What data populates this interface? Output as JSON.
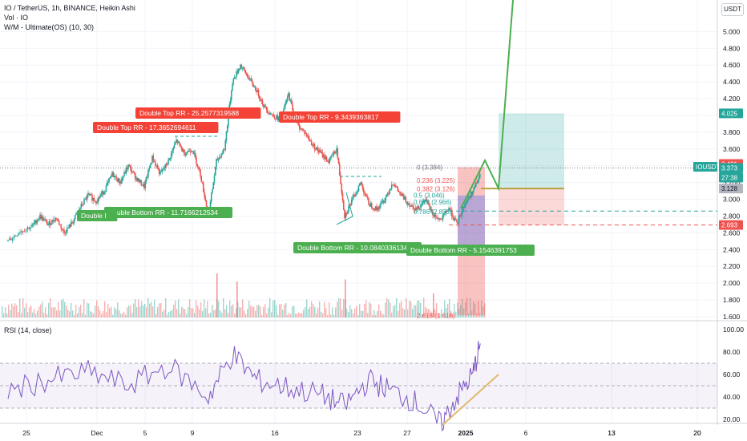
{
  "header": {
    "symbol_line": "IO / TetherUS, 1h, BINANCE, Heikin Ashi",
    "vol_line": "Vol · IO",
    "indicator_line": "W/M - Ultimate(OS) (10, 30)",
    "currency_button": "USDT"
  },
  "rsi_panel": {
    "title": "RSI (14, close)"
  },
  "colors": {
    "up": "#26a69a",
    "down": "#ef5350",
    "rsi": "#7e57c2",
    "trend": "#e2b96c",
    "green_label": "#4caf50",
    "red_label": "#f44336"
  },
  "chart_data": {
    "type": "candlestick",
    "x_ticks": [
      "25",
      "Dec",
      "5",
      "9",
      "13",
      "16",
      "20",
      "23",
      "27",
      "2025",
      "6",
      "13",
      "20"
    ],
    "y_ticks": [
      "1.600",
      "1.800",
      "2.000",
      "2.200",
      "2.400",
      "2.600",
      "2.800",
      "3.000",
      "3.200",
      "3.400",
      "3.600",
      "3.800",
      "4.000",
      "4.200",
      "4.400",
      "4.600",
      "4.800",
      "5.000"
    ],
    "rsi_ticks": [
      "100.00",
      "80.00",
      "60.00",
      "40.00",
      "20.00"
    ],
    "price_tags": [
      {
        "text": "4.025",
        "color": "#26a69a"
      },
      {
        "text": "3.421",
        "color": "#ef5350"
      },
      {
        "text": "IOUSDT",
        "color": "#26a69a"
      },
      {
        "text": "3.373",
        "color": "#26a69a"
      },
      {
        "text": "27:38",
        "color": "#26a69a"
      },
      {
        "text": "3.128",
        "color": "#b2b5be"
      },
      {
        "text": "2.693",
        "color": "#ef5350"
      }
    ],
    "pattern_labels": [
      {
        "text": "Double Top RR - 25.2577319588",
        "kind": "top"
      },
      {
        "text": "Double Top RR - 17.3652694611",
        "kind": "top"
      },
      {
        "text": "Double Top RR - 9.3439363817",
        "kind": "top"
      },
      {
        "text": "Double Bottom RR - 11.7166212534",
        "kind": "bottom"
      },
      {
        "text": "Double I",
        "kind": "bottom"
      },
      {
        "text": "Double Bottom RR - 10.0840336134",
        "kind": "bottom"
      },
      {
        "text": "Double Bottom RR - 5.1546391753",
        "kind": "bottom"
      }
    ],
    "fib_levels": [
      {
        "text": "0 (3.384)",
        "level": 3.384
      },
      {
        "text": "0.236 (3.225)",
        "level": 3.225
      },
      {
        "text": "0.382 (3.126)",
        "level": 3.126
      },
      {
        "text": "0.5 (3.046)",
        "level": 3.046
      },
      {
        "text": "0.618 (2.966)",
        "level": 2.966
      },
      {
        "text": "0.786 (2.853)",
        "level": 2.853
      },
      {
        "text": "2.618 (1.616)",
        "level": 1.616
      }
    ],
    "price_path": [
      [
        0,
        2.5
      ],
      [
        3,
        2.62
      ],
      [
        6,
        2.68
      ],
      [
        8,
        2.8
      ],
      [
        10,
        2.7
      ],
      [
        12,
        2.78
      ],
      [
        14,
        2.6
      ],
      [
        16,
        2.72
      ],
      [
        18,
        2.9
      ],
      [
        20,
        3.05
      ],
      [
        22,
        2.98
      ],
      [
        24,
        3.1
      ],
      [
        26,
        3.3
      ],
      [
        28,
        3.2
      ],
      [
        30,
        3.4
      ],
      [
        32,
        3.25
      ],
      [
        34,
        3.15
      ],
      [
        36,
        3.5
      ],
      [
        38,
        3.3
      ],
      [
        40,
        3.45
      ],
      [
        42,
        3.7
      ],
      [
        44,
        3.55
      ],
      [
        46,
        3.6
      ],
      [
        48,
        3.3
      ],
      [
        50,
        2.8
      ],
      [
        52,
        3.45
      ],
      [
        54,
        3.6
      ],
      [
        56,
        4.4
      ],
      [
        58,
        4.6
      ],
      [
        60,
        4.45
      ],
      [
        62,
        4.3
      ],
      [
        64,
        4.1
      ],
      [
        66,
        4.0
      ],
      [
        68,
        3.95
      ],
      [
        70,
        4.25
      ],
      [
        72,
        3.9
      ],
      [
        74,
        3.8
      ],
      [
        76,
        3.65
      ],
      [
        78,
        3.55
      ],
      [
        80,
        3.45
      ],
      [
        82,
        3.6
      ],
      [
        84,
        2.8
      ],
      [
        86,
        3.0
      ],
      [
        88,
        3.2
      ],
      [
        90,
        2.95
      ],
      [
        92,
        2.88
      ],
      [
        94,
        3.0
      ],
      [
        96,
        3.2
      ],
      [
        98,
        3.05
      ],
      [
        100,
        2.95
      ],
      [
        102,
        2.88
      ],
      [
        104,
        3.0
      ],
      [
        106,
        2.82
      ],
      [
        108,
        2.75
      ],
      [
        110,
        2.9
      ],
      [
        112,
        2.7
      ],
      [
        114,
        2.95
      ],
      [
        116,
        3.1
      ],
      [
        118,
        3.3
      ]
    ],
    "rsi_path": [
      [
        0,
        45
      ],
      [
        10,
        55
      ],
      [
        20,
        62
      ],
      [
        30,
        50
      ],
      [
        40,
        68
      ],
      [
        50,
        40
      ],
      [
        56,
        78
      ],
      [
        62,
        55
      ],
      [
        70,
        48
      ],
      [
        78,
        42
      ],
      [
        84,
        32
      ],
      [
        90,
        55
      ],
      [
        96,
        45
      ],
      [
        102,
        35
      ],
      [
        108,
        15
      ],
      [
        112,
        40
      ],
      [
        116,
        60
      ],
      [
        118,
        90
      ]
    ],
    "volume_spikes": [
      [
        52,
        110
      ],
      [
        57,
        90
      ],
      [
        84,
        95
      ],
      [
        106,
        60
      ]
    ]
  }
}
